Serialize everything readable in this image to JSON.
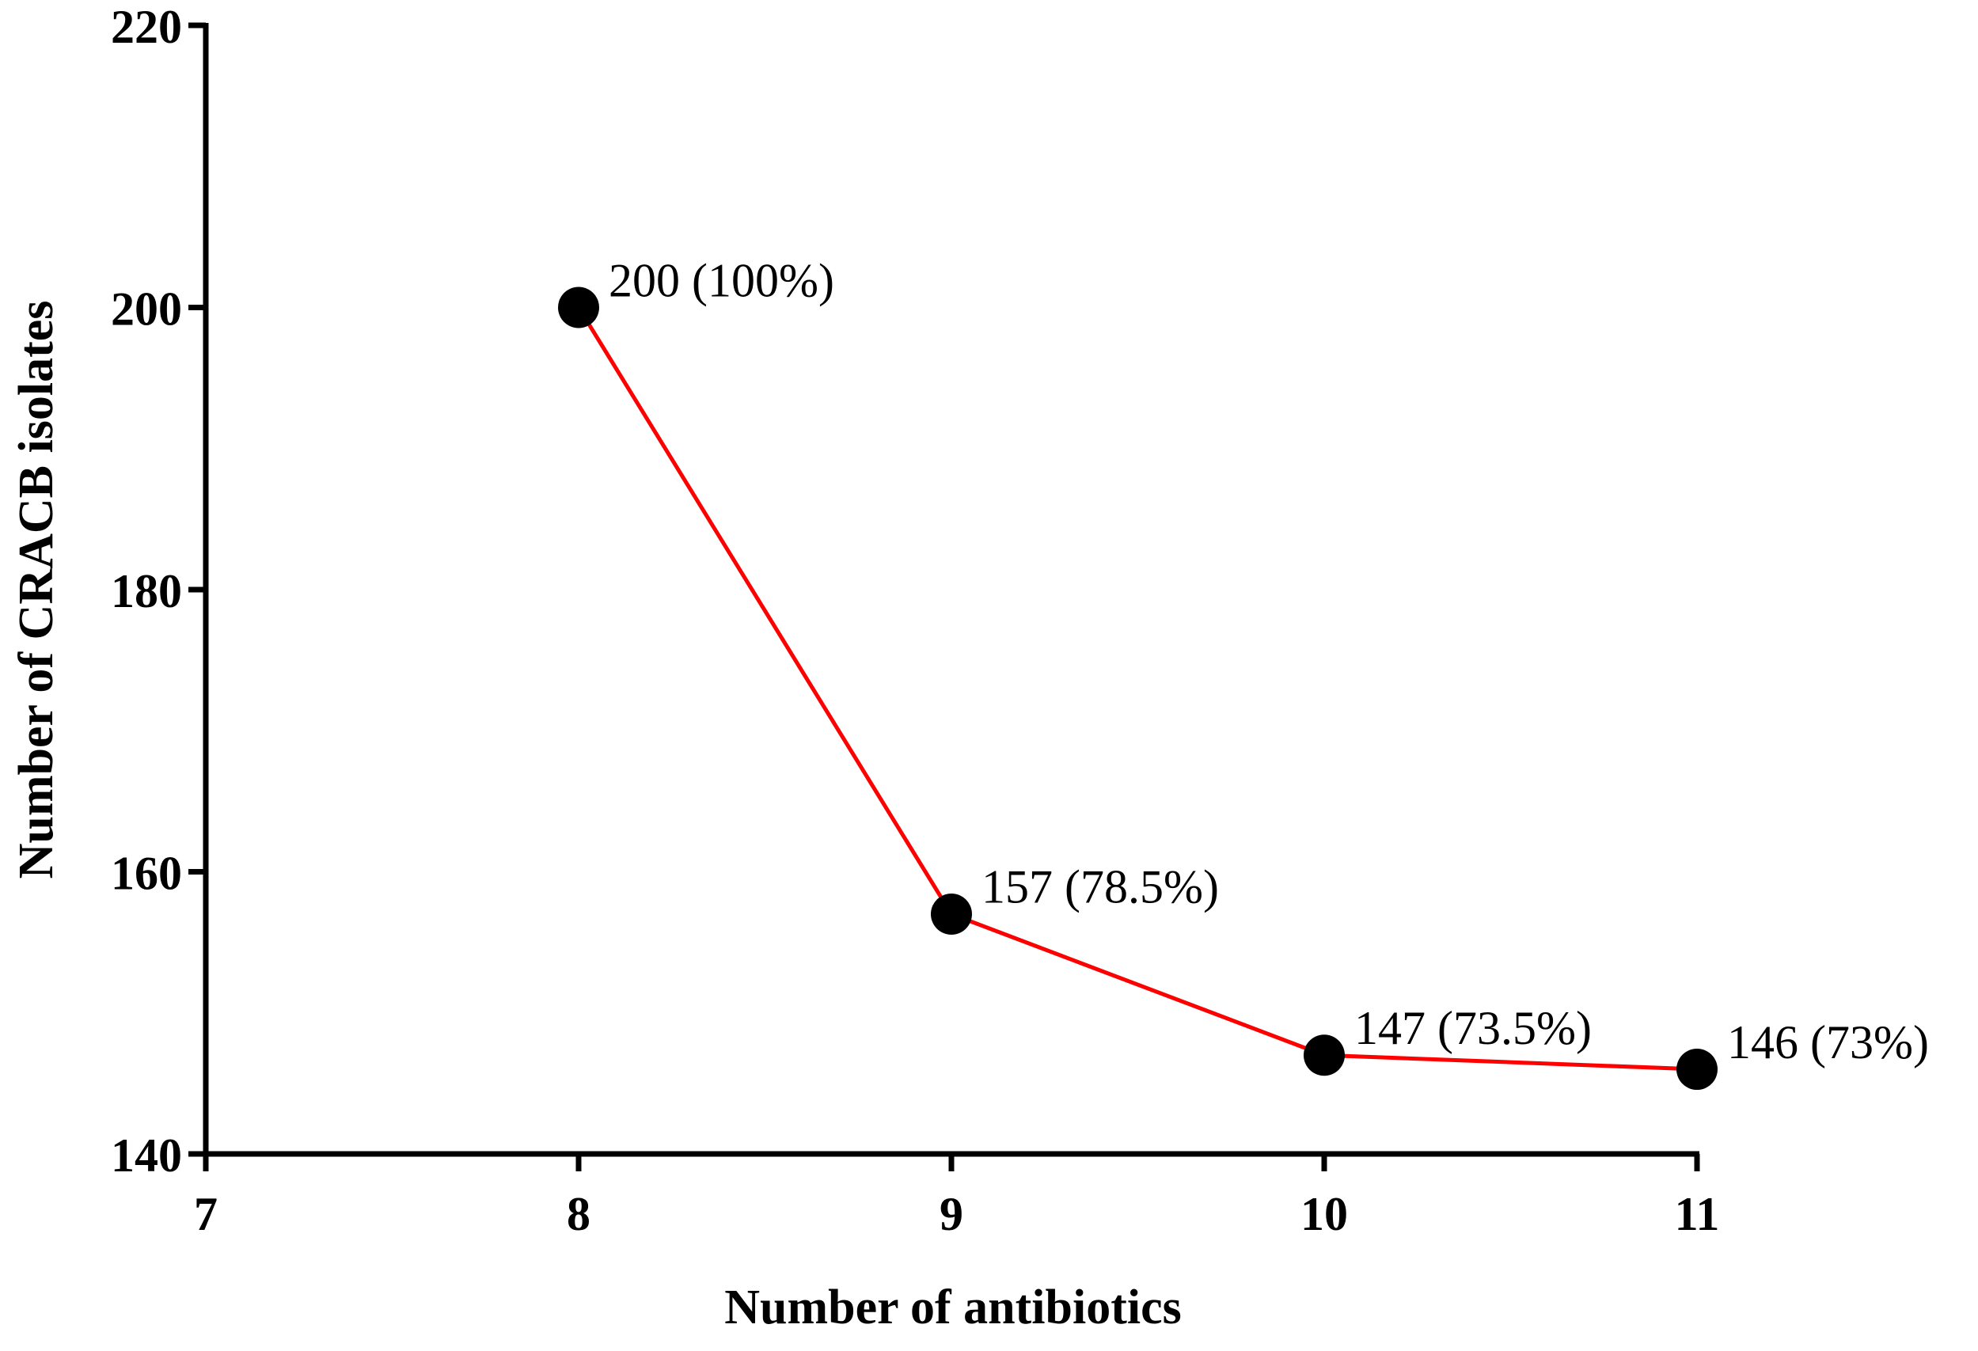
{
  "chart_data": {
    "type": "line",
    "x_label": "Number of antibiotics",
    "y_label": "Number of CRACB isolates",
    "x": [
      8,
      9,
      10,
      11
    ],
    "series": [
      {
        "color": "#ff0000",
        "marker_color": "#000000",
        "values": [
          200,
          157,
          147,
          146
        ],
        "value_labels": [
          "200 (100%)",
          "157 (78.5%)",
          "147 (73.5%)",
          "146 (73%)"
        ]
      }
    ],
    "xlim": [
      7,
      11
    ],
    "xticks": [
      7,
      8,
      9,
      10,
      11
    ],
    "ylim": [
      140,
      220
    ],
    "yticks": [
      140,
      160,
      180,
      200,
      220
    ]
  }
}
